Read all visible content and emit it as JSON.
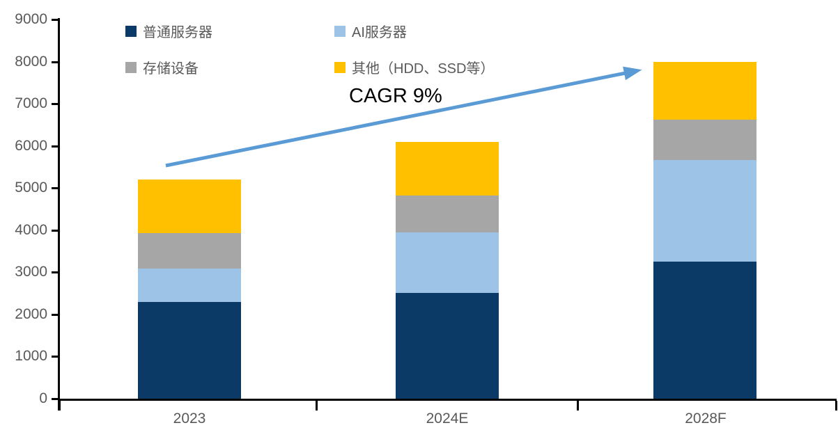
{
  "chart_data": {
    "type": "bar",
    "stacked": true,
    "title": "",
    "xlabel": "",
    "ylabel": "",
    "categories": [
      "2023",
      "2024E",
      "2028F"
    ],
    "series": [
      {
        "name": "普通服务器",
        "color": "#0B3A67",
        "values": [
          2290,
          2510,
          3250
        ]
      },
      {
        "name": "AI服务器",
        "color": "#9DC3E6",
        "values": [
          800,
          1430,
          2410
        ]
      },
      {
        "name": "存储设备",
        "color": "#A6A6A6",
        "values": [
          840,
          880,
          970
        ]
      },
      {
        "name": "其他（HDD、SSD等）",
        "color": "#FFC000",
        "values": [
          1270,
          1270,
          1370
        ]
      }
    ],
    "stack_totals": [
      5200,
      6090,
      8000
    ],
    "ylim": [
      0,
      9000
    ],
    "ytick_step": 1000,
    "ytick_labels": [
      "0",
      "1000",
      "2000",
      "3000",
      "4000",
      "5000",
      "6000",
      "7000",
      "8000",
      "9000"
    ],
    "grid": false,
    "legend_position": "top-left-two-columns",
    "annotation": {
      "text": "CAGR 9%",
      "arrow_color": "#5B9BD5"
    }
  },
  "colors": {
    "axis_line": "#000000",
    "tick_text": "#595959",
    "legend_text": "#595959",
    "annotation_text": "#000000"
  }
}
